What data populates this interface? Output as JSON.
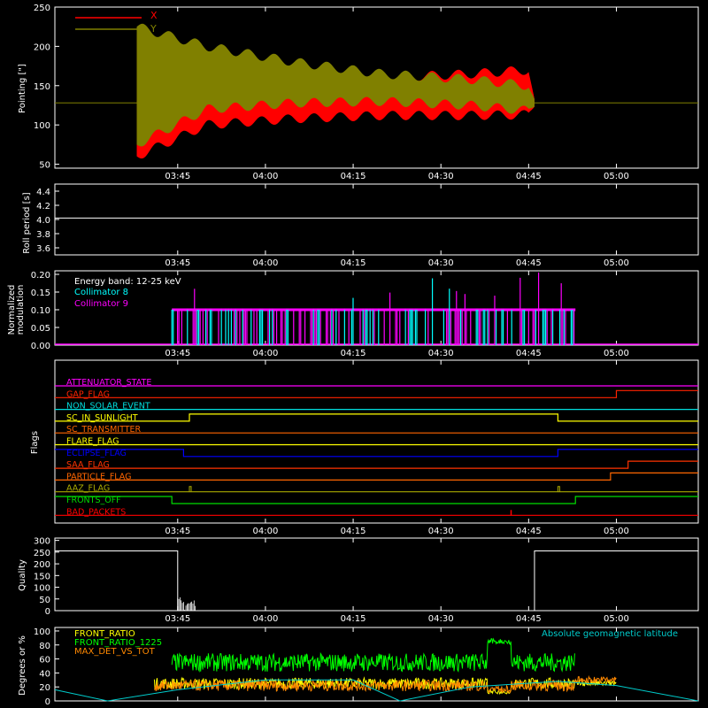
{
  "time_axis": {
    "ticks": [
      "03:45",
      "04:00",
      "04:15",
      "04:30",
      "04:45",
      "05:00"
    ],
    "start": "03:24",
    "end": "05:14"
  },
  "colors": {
    "axes": "#ffffff",
    "x_pointing": "#ff0000",
    "y_pointing": "#808000",
    "collimator_8": "#00ffff",
    "collimator_9": "#ff00ff",
    "energy_text": "#ffffff",
    "latitude": "#00cccc",
    "front_ratio": "#ffff00",
    "front_ratio_1225": "#00ff00",
    "max_det": "#ff8800"
  },
  "panels": {
    "pointing": {
      "ylabel": "Pointing [\"]",
      "legend": [
        "X",
        "Y"
      ],
      "yticks": [
        50,
        100,
        150,
        200,
        250
      ],
      "ylim": [
        45,
        250
      ]
    },
    "roll": {
      "ylabel": "Roll period [s]",
      "yticks": [
        "3.6",
        "3.8",
        "4.0",
        "4.2",
        "4.4"
      ],
      "ylim": [
        3.5,
        4.5
      ]
    },
    "modulation": {
      "ylabel": "Normalized",
      "ylabel2": "modulation",
      "yticks": [
        "0.00",
        "0.05",
        "0.10",
        "0.15",
        "0.20"
      ],
      "ylim": [
        0,
        0.21
      ],
      "energy_band": "Energy band: 12-25 keV",
      "legend": [
        "Collimator 8",
        "Collimator 9"
      ]
    },
    "flags": {
      "ylabel": "Flags"
    },
    "quality": {
      "ylabel": "Quality",
      "yticks": [
        0,
        50,
        100,
        150,
        200,
        250,
        300
      ],
      "ylim": [
        0,
        310
      ]
    },
    "ratios": {
      "ylabel": "Degrees or %",
      "yticks": [
        0,
        20,
        40,
        60,
        80,
        100
      ],
      "ylim": [
        0,
        105
      ],
      "legend": [
        "FRONT_RATIO",
        "FRONT_RATIO_1225",
        "MAX_DET_VS_TOT"
      ],
      "legend_right": "Absolute geomagnetic latitude"
    }
  },
  "chart_data": [
    {
      "type": "line",
      "title": "",
      "ylabel": "Pointing [\"]",
      "ylim": [
        45,
        250
      ],
      "series": [
        {
          "name": "X",
          "color": "#ff0000",
          "envelope": {
            "t": [
              "03:24",
              "03:37",
              "03:38",
              "03:50",
              "04:05",
              "04:20",
              "04:35",
              "04:45",
              "04:46",
              "05:14"
            ],
            "upper": [
              128,
              128,
              215,
              165,
              160,
              160,
              165,
              170,
              128,
              128
            ],
            "lower": [
              128,
              128,
              60,
              100,
              108,
              112,
              112,
              113,
              128,
              128
            ]
          }
        },
        {
          "name": "Y",
          "color": "#808000",
          "envelope": {
            "t": [
              "03:24",
              "03:37",
              "03:38",
              "03:50",
              "04:05",
              "04:20",
              "04:35",
              "04:45",
              "04:46",
              "05:14"
            ],
            "upper": [
              128,
              128,
              225,
              200,
              180,
              165,
              158,
              150,
              128,
              128
            ],
            "lower": [
              128,
              128,
              75,
              120,
              128,
              130,
              125,
              118,
              128,
              128
            ]
          }
        }
      ]
    },
    {
      "type": "line",
      "ylabel": "Roll period [s]",
      "ylim": [
        3.5,
        4.5
      ],
      "series": [
        {
          "name": "",
          "t": [
            "03:24",
            "05:14"
          ],
          "values": [
            4.02,
            4.02
          ]
        }
      ]
    },
    {
      "type": "bar",
      "ylabel": "Normalized modulation",
      "ylim": [
        0,
        0.21
      ],
      "series": [
        {
          "name": "Collimator 8",
          "t_range": [
            "03:44",
            "04:53"
          ],
          "typical": 0.1,
          "max": 0.2
        },
        {
          "name": "Collimator 9",
          "t_range": [
            "03:44",
            "04:53"
          ],
          "typical": 0.1,
          "max": 0.2
        }
      ]
    },
    {
      "type": "line",
      "ylabel": "Flags",
      "series": [
        {
          "name": "ATTENUATOR_STATE",
          "color": "#ff00ff",
          "steps": [
            [
              "03:24",
              0
            ],
            [
              "05:14",
              0
            ]
          ]
        },
        {
          "name": "GAP_FLAG",
          "color": "#ff2200",
          "steps": [
            [
              "03:24",
              0
            ],
            [
              "05:00",
              1
            ],
            [
              "05:14",
              1
            ]
          ]
        },
        {
          "name": "NON_SOLAR_EVENT",
          "color": "#00dddd",
          "steps": [
            [
              "03:24",
              0
            ],
            [
              "05:14",
              0
            ]
          ]
        },
        {
          "name": "SC_IN_SUNLIGHT",
          "color": "#ffff00",
          "steps": [
            [
              "03:24",
              0
            ],
            [
              "03:47",
              1
            ],
            [
              "04:50",
              0
            ],
            [
              "05:14",
              0
            ]
          ]
        },
        {
          "name": "SC_TRANSMITTER",
          "color": "#ff6600",
          "steps": [
            [
              "03:24",
              0
            ],
            [
              "05:14",
              0
            ]
          ]
        },
        {
          "name": "FLARE_FLAG",
          "color": "#ffff00",
          "steps": [
            [
              "03:24",
              0
            ],
            [
              "05:14",
              0
            ]
          ]
        },
        {
          "name": "ECLIPSE_FLAG",
          "color": "#0000ff",
          "steps": [
            [
              "03:24",
              1
            ],
            [
              "03:46",
              0
            ],
            [
              "04:50",
              1
            ],
            [
              "05:14",
              1
            ]
          ]
        },
        {
          "name": "SAA_FLAG",
          "color": "#ff3300",
          "steps": [
            [
              "03:24",
              0
            ],
            [
              "05:02",
              1
            ],
            [
              "05:14",
              1
            ]
          ]
        },
        {
          "name": "PARTICLE_FLAG",
          "color": "#ff6600",
          "steps": [
            [
              "03:24",
              0
            ],
            [
              "04:59",
              1
            ],
            [
              "05:14",
              1
            ]
          ]
        },
        {
          "name": "AAZ_FLAG",
          "color": "#aaaa00",
          "steps": [
            [
              "03:24",
              0
            ],
            [
              "05:14",
              0
            ]
          ]
        },
        {
          "name": "FRONTS_OFF",
          "color": "#00dd00",
          "steps": [
            [
              "03:24",
              1
            ],
            [
              "03:44",
              0
            ],
            [
              "04:53",
              1
            ],
            [
              "05:14",
              1
            ]
          ]
        },
        {
          "name": "BAD_PACKETS",
          "color": "#ff0000",
          "steps": [
            [
              "03:24",
              0
            ],
            [
              "05:14",
              0
            ]
          ]
        }
      ]
    },
    {
      "type": "line",
      "ylabel": "Quality",
      "ylim": [
        0,
        310
      ],
      "series": [
        {
          "name": "",
          "t": [
            "03:24",
            "03:45",
            "03:45",
            "04:46",
            "04:46",
            "05:14"
          ],
          "values": [
            255,
            255,
            0,
            0,
            255,
            255
          ]
        }
      ]
    },
    {
      "type": "line",
      "ylabel": "Degrees or %",
      "ylim": [
        0,
        105
      ],
      "series": [
        {
          "name": "FRONT_RATIO",
          "t_range": [
            "03:41",
            "05:00"
          ],
          "typical": 25
        },
        {
          "name": "FRONT_RATIO_1225",
          "t_range": [
            "03:44",
            "04:53"
          ],
          "typical": 55
        },
        {
          "name": "MAX_DET_VS_TOT",
          "t_range": [
            "03:41",
            "05:00"
          ],
          "typical": 22
        },
        {
          "name": "Absolute geomagnetic latitude",
          "t": [
            "03:24",
            "03:33",
            "03:45",
            "04:00",
            "04:15",
            "04:23",
            "04:35",
            "04:50",
            "05:00",
            "05:14"
          ],
          "values": [
            16,
            0,
            16,
            30,
            30,
            0,
            20,
            28,
            22,
            0
          ]
        }
      ]
    }
  ]
}
